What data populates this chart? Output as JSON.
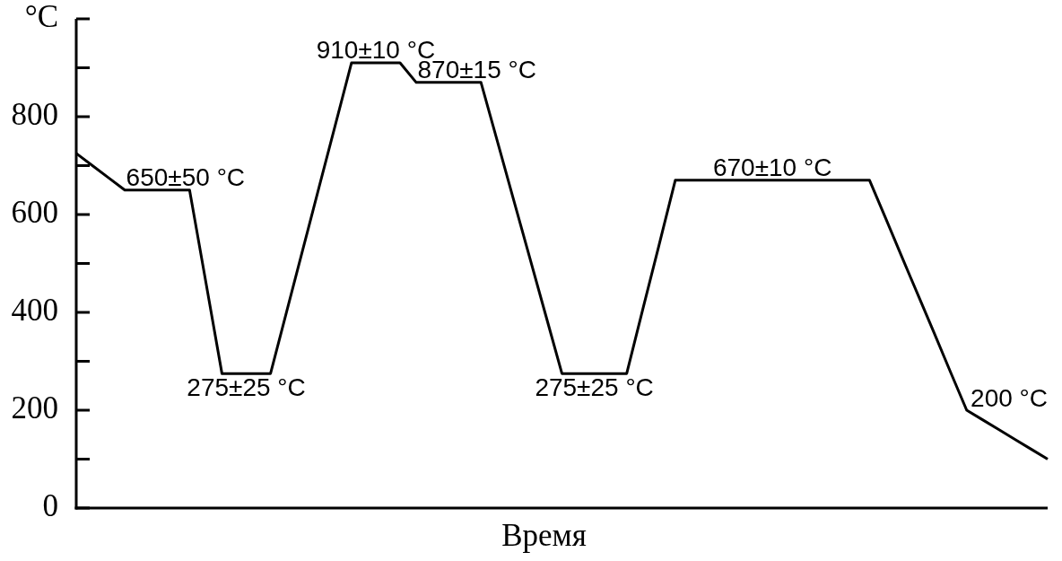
{
  "chart_data": {
    "type": "line",
    "xlabel": "Время",
    "ylabel": "°C",
    "categories": [
      null,
      null,
      null,
      null,
      null,
      null,
      null,
      null,
      null,
      null,
      null,
      null,
      null,
      null,
      null,
      null,
      null,
      null,
      null,
      null,
      null,
      null,
      null,
      null,
      null,
      null,
      null,
      null,
      null,
      null,
      null,
      null,
      null,
      null,
      null,
      null,
      null,
      null,
      null,
      null,
      null,
      null,
      null,
      null,
      null,
      null,
      null,
      null,
      null,
      null,
      null,
      null,
      null,
      null,
      null,
      null,
      null,
      null,
      null,
      null,
      null
    ],
    "series": [
      {
        "color": "#000000",
        "values": [
          725,
          700,
          675,
          650,
          650,
          650,
          650,
          650,
          463,
          275,
          275,
          275,
          275,
          402,
          529,
          656,
          783,
          910,
          910,
          910,
          910,
          870,
          870,
          870,
          870,
          870,
          751,
          632,
          513,
          394,
          275,
          275,
          275,
          275,
          275,
          407,
          538,
          670,
          670,
          670,
          670,
          670,
          670,
          670,
          670,
          670,
          670,
          670,
          670,
          670,
          592,
          513,
          435,
          357,
          278,
          200,
          180,
          160,
          140,
          120,
          100
        ]
      }
    ],
    "ylim": [
      0,
      1000
    ],
    "yticks": [
      0,
      {
        "value": 100,
        "label": null
      },
      200,
      {
        "value": 300,
        "label": null
      },
      400,
      {
        "value": 500,
        "label": null
      },
      600,
      {
        "value": 700,
        "label": null
      },
      800,
      {
        "value": 900,
        "label": null
      },
      {
        "value": 1000,
        "label": null
      }
    ],
    "tick_labels": "y",
    "grid": false,
    "legend": false,
    "marker": "none",
    "line_style": "solid",
    "annotations": [
      {
        "text": "650±50 °C",
        "y": 650
      },
      {
        "text": "275±25 °C",
        "y": 275
      },
      {
        "text": "910±10 °C",
        "y": 910
      },
      {
        "text": "870±15 °C",
        "y": 870
      },
      {
        "text": "275±25 °C",
        "y": 275
      },
      {
        "text": "670±10 °C",
        "y": 670
      },
      "200 °C"
    ]
  }
}
